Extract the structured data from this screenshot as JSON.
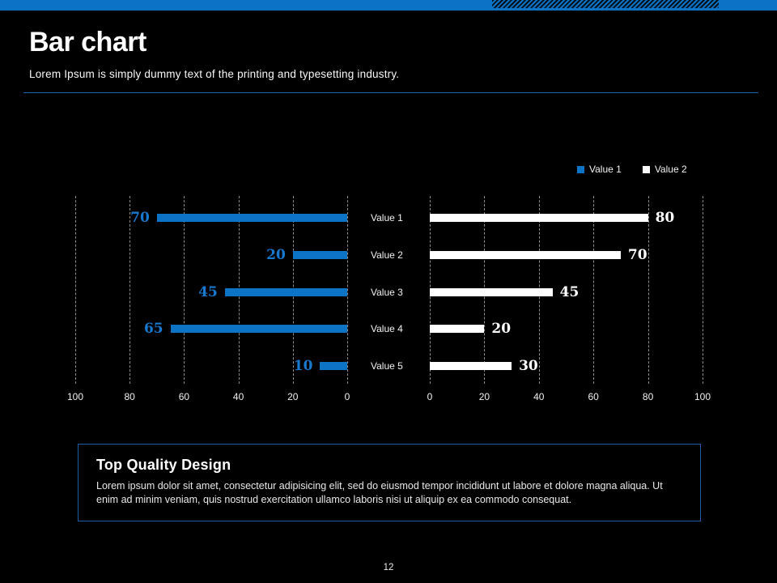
{
  "slide": {
    "title": "Bar chart",
    "subtitle": "Lorem Ipsum is simply dummy text of the printing and typesetting industry.",
    "page_number": "12"
  },
  "colors": {
    "accent_blue": "#0b72c4",
    "value1_bar": "#0d73c5",
    "value1_label": "#1779cf",
    "value2_bar": "#ffffff",
    "value2_label": "#ffffff",
    "grid": "#8d8d8d",
    "box_border": "#1a5fa8"
  },
  "legend": [
    {
      "label": "Value 1",
      "color": "#0d73c5"
    },
    {
      "label": "Value 2",
      "color": "#ffffff"
    }
  ],
  "chart_data": {
    "type": "bar",
    "variant": "tornado-horizontal",
    "title": "",
    "categories": [
      "Value 1",
      "Value 2",
      "Value 3",
      "Value 4",
      "Value 5"
    ],
    "series": [
      {
        "name": "Value 1",
        "side": "left",
        "values": [
          70,
          20,
          45,
          65,
          10
        ],
        "color": "#0d73c5",
        "label_color": "#1779cf"
      },
      {
        "name": "Value 2",
        "side": "right",
        "values": [
          80,
          70,
          45,
          20,
          30
        ],
        "color": "#ffffff",
        "label_color": "#ffffff"
      }
    ],
    "xlim": [
      0,
      100
    ],
    "axis_ticks_left": [
      "100",
      "80",
      "60",
      "40",
      "20",
      "0"
    ],
    "axis_ticks_right": [
      "0",
      "20",
      "40",
      "60",
      "80",
      "100"
    ],
    "grid": true,
    "gridline_style": "dashed",
    "legend_position": "top-right"
  },
  "info_box": {
    "heading": "Top Quality Design",
    "body": "Lorem ipsum dolor sit amet, consectetur adipisicing elit, sed do eiusmod tempor incididunt ut labore et dolore magna aliqua. Ut enim ad minim veniam, quis nostrud exercitation ullamco laboris nisi ut aliquip ex ea commodo consequat."
  }
}
